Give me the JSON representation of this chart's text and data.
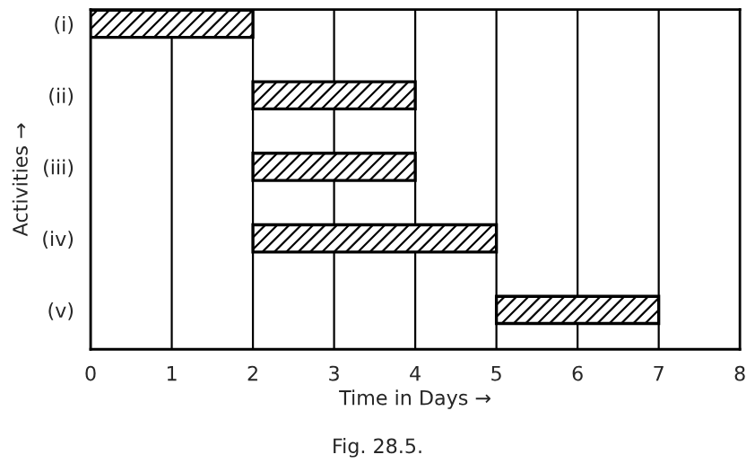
{
  "chart_data": {
    "type": "bar",
    "orientation": "horizontal",
    "categories": [
      "(i)",
      "(ii)",
      "(iii)",
      "(iv)",
      "(v)"
    ],
    "base": [
      0,
      2,
      2,
      2,
      5
    ],
    "values": [
      2,
      2,
      2,
      3,
      2
    ],
    "color": "#000000",
    "xlim": [
      0,
      8
    ],
    "xticks": [
      0,
      1,
      2,
      3,
      4,
      5,
      6,
      7,
      8
    ],
    "xlabel": "Time in Days →",
    "ylabel": "Activities →",
    "grid": "x",
    "annotations": [
      "Fig. 28.5."
    ]
  }
}
